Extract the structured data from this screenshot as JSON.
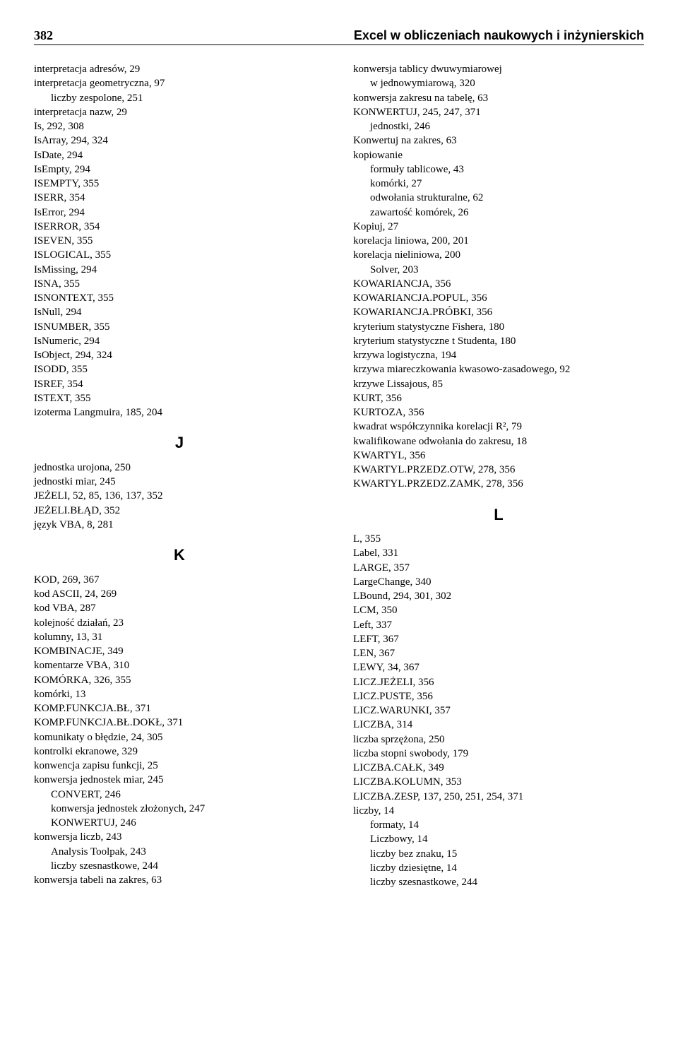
{
  "header": {
    "page_number": "382",
    "title": "Excel w obliczeniach naukowych i inżynierskich"
  },
  "left_column": {
    "block1": [
      {
        "t": "interpretacja adresów, 29",
        "i": false
      },
      {
        "t": "interpretacja geometryczna, 97",
        "i": false
      },
      {
        "t": "liczby zespolone, 251",
        "i": true
      },
      {
        "t": "interpretacja nazw, 29",
        "i": false
      },
      {
        "t": "Is, 292, 308",
        "i": false
      },
      {
        "t": "IsArray, 294, 324",
        "i": false
      },
      {
        "t": "IsDate, 294",
        "i": false
      },
      {
        "t": "IsEmpty, 294",
        "i": false
      },
      {
        "t": "ISEMPTY, 355",
        "i": false
      },
      {
        "t": "ISERR, 354",
        "i": false
      },
      {
        "t": "IsError, 294",
        "i": false
      },
      {
        "t": "ISERROR, 354",
        "i": false
      },
      {
        "t": "ISEVEN, 355",
        "i": false
      },
      {
        "t": "ISLOGICAL, 355",
        "i": false
      },
      {
        "t": "IsMissing, 294",
        "i": false
      },
      {
        "t": "ISNA, 355",
        "i": false
      },
      {
        "t": "ISNONTEXT, 355",
        "i": false
      },
      {
        "t": "IsNull, 294",
        "i": false
      },
      {
        "t": "ISNUMBER, 355",
        "i": false
      },
      {
        "t": "IsNumeric, 294",
        "i": false
      },
      {
        "t": "IsObject, 294, 324",
        "i": false
      },
      {
        "t": "ISODD, 355",
        "i": false
      },
      {
        "t": "ISREF, 354",
        "i": false
      },
      {
        "t": "ISTEXT, 355",
        "i": false
      },
      {
        "t": "izoterma Langmuira, 185, 204",
        "i": false
      }
    ],
    "letter_J": "J",
    "block_J": [
      {
        "t": "jednostka urojona, 250",
        "i": false
      },
      {
        "t": "jednostki miar, 245",
        "i": false
      },
      {
        "t": "JEŻELI, 52, 85, 136, 137, 352",
        "i": false
      },
      {
        "t": "JEŻELI.BŁĄD, 352",
        "i": false
      },
      {
        "t": "język VBA, 8, 281",
        "i": false
      }
    ],
    "letter_K": "K",
    "block_K": [
      {
        "t": "KOD, 269, 367",
        "i": false
      },
      {
        "t": "kod ASCII, 24, 269",
        "i": false
      },
      {
        "t": "kod VBA, 287",
        "i": false
      },
      {
        "t": "kolejność działań, 23",
        "i": false
      },
      {
        "t": "kolumny, 13, 31",
        "i": false
      },
      {
        "t": "KOMBINACJE, 349",
        "i": false
      },
      {
        "t": "komentarze VBA, 310",
        "i": false
      },
      {
        "t": "KOMÓRKA, 326, 355",
        "i": false
      },
      {
        "t": "komórki, 13",
        "i": false
      },
      {
        "t": "KOMP.FUNKCJA.BŁ, 371",
        "i": false
      },
      {
        "t": "KOMP.FUNKCJA.BŁ.DOKŁ, 371",
        "i": false
      },
      {
        "t": "komunikaty o błędzie, 24, 305",
        "i": false
      },
      {
        "t": "kontrolki ekranowe, 329",
        "i": false
      },
      {
        "t": "konwencja zapisu funkcji, 25",
        "i": false
      },
      {
        "t": "konwersja jednostek miar, 245",
        "i": false
      },
      {
        "t": "CONVERT, 246",
        "i": true
      },
      {
        "t": "konwersja jednostek złożonych, 247",
        "i": true
      },
      {
        "t": "KONWERTUJ, 246",
        "i": true
      },
      {
        "t": "konwersja liczb, 243",
        "i": false
      },
      {
        "t": "Analysis Toolpak, 243",
        "i": true
      },
      {
        "t": "liczby szesnastkowe, 244",
        "i": true
      },
      {
        "t": "konwersja tabeli na zakres, 63",
        "i": false
      }
    ]
  },
  "right_column": {
    "block1": [
      {
        "t": "konwersja tablicy dwuwymiarowej",
        "i": false
      },
      {
        "t": "w jednowymiarową, 320",
        "i": true
      },
      {
        "t": "konwersja zakresu na tabelę, 63",
        "i": false
      },
      {
        "t": "KONWERTUJ, 245, 247, 371",
        "i": false
      },
      {
        "t": "jednostki, 246",
        "i": true
      },
      {
        "t": "Konwertuj na zakres, 63",
        "i": false
      },
      {
        "t": "kopiowanie",
        "i": false
      },
      {
        "t": "formuły tablicowe, 43",
        "i": true
      },
      {
        "t": "komórki, 27",
        "i": true
      },
      {
        "t": "odwołania strukturalne, 62",
        "i": true
      },
      {
        "t": "zawartość komórek, 26",
        "i": true
      },
      {
        "t": "Kopiuj, 27",
        "i": false
      },
      {
        "t": "korelacja liniowa, 200, 201",
        "i": false
      },
      {
        "t": "korelacja nieliniowa, 200",
        "i": false
      },
      {
        "t": "Solver, 203",
        "i": true
      },
      {
        "t": "KOWARIANCJA, 356",
        "i": false
      },
      {
        "t": "KOWARIANCJA.POPUL, 356",
        "i": false
      },
      {
        "t": "KOWARIANCJA.PRÓBKI, 356",
        "i": false
      },
      {
        "t": "kryterium statystyczne Fishera, 180",
        "i": false
      },
      {
        "t": "kryterium statystyczne t Studenta, 180",
        "i": false
      },
      {
        "t": "krzywa logistyczna, 194",
        "i": false
      },
      {
        "t": "krzywa miareczkowania kwasowo-zasadowego, 92",
        "i": false
      },
      {
        "t": "krzywe Lissajous, 85",
        "i": false
      },
      {
        "t": "KURT, 356",
        "i": false
      },
      {
        "t": "KURTOZA, 356",
        "i": false
      },
      {
        "t": "kwadrat współczynnika korelacji R², 79",
        "i": false
      },
      {
        "t": "kwalifikowane odwołania do zakresu, 18",
        "i": false
      },
      {
        "t": "KWARTYL, 356",
        "i": false
      },
      {
        "t": "KWARTYL.PRZEDZ.OTW, 278, 356",
        "i": false
      },
      {
        "t": "KWARTYL.PRZEDZ.ZAMK, 278, 356",
        "i": false
      }
    ],
    "letter_L": "L",
    "block_L": [
      {
        "t": "L, 355",
        "i": false
      },
      {
        "t": "Label, 331",
        "i": false
      },
      {
        "t": "LARGE, 357",
        "i": false
      },
      {
        "t": "LargeChange, 340",
        "i": false
      },
      {
        "t": "LBound, 294, 301, 302",
        "i": false
      },
      {
        "t": "LCM, 350",
        "i": false
      },
      {
        "t": "Left, 337",
        "i": false
      },
      {
        "t": "LEFT, 367",
        "i": false
      },
      {
        "t": "LEN, 367",
        "i": false
      },
      {
        "t": "LEWY, 34, 367",
        "i": false
      },
      {
        "t": "LICZ.JEŻELI, 356",
        "i": false
      },
      {
        "t": "LICZ.PUSTE, 356",
        "i": false
      },
      {
        "t": "LICZ.WARUNKI, 357",
        "i": false
      },
      {
        "t": "LICZBA, 314",
        "i": false
      },
      {
        "t": "liczba sprzężona, 250",
        "i": false
      },
      {
        "t": "liczba stopni swobody, 179",
        "i": false
      },
      {
        "t": "LICZBA.CAŁK, 349",
        "i": false
      },
      {
        "t": "LICZBA.KOLUMN, 353",
        "i": false
      },
      {
        "t": "LICZBA.ZESP, 137, 250, 251, 254, 371",
        "i": false
      },
      {
        "t": "liczby, 14",
        "i": false
      },
      {
        "t": "formaty, 14",
        "i": true
      },
      {
        "t": "Liczbowy, 14",
        "i": true
      },
      {
        "t": "liczby bez znaku, 15",
        "i": true
      },
      {
        "t": "liczby dziesiętne, 14",
        "i": true
      },
      {
        "t": "liczby szesnastkowe, 244",
        "i": true
      }
    ]
  }
}
